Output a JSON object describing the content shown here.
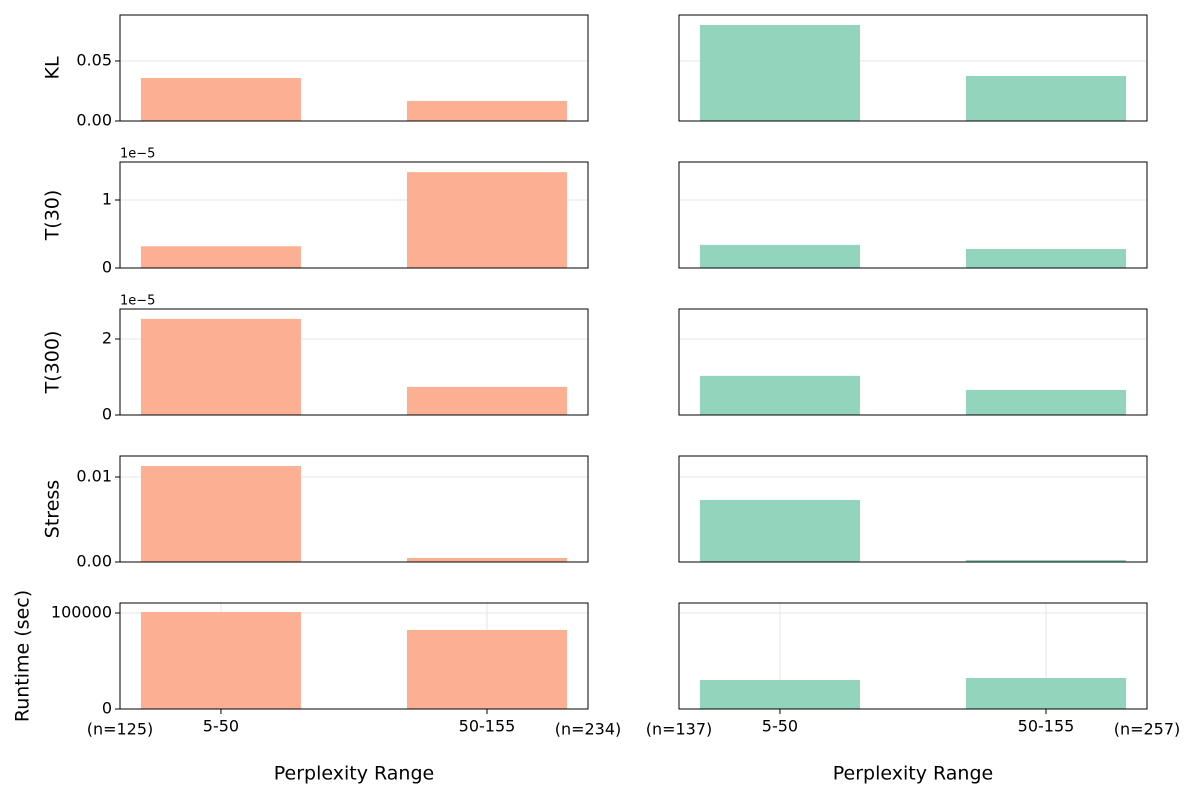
{
  "chart_data": [
    {
      "type": "bar",
      "ylabel": "KL",
      "color": "#fbb094",
      "values": [
        0.0358,
        0.0167
      ],
      "ylim": [
        0,
        0.0883
      ],
      "yticks": [
        {
          "value": 0,
          "label": "0.00"
        },
        {
          "value": 0.05,
          "label": "0.05"
        }
      ],
      "grid": true
    },
    {
      "type": "bar",
      "color": "#93d4bd",
      "values": [
        0.08,
        0.0375
      ],
      "ylim": [
        0,
        0.0883
      ],
      "yticks": [
        0,
        0.05
      ],
      "grid": true
    },
    {
      "type": "bar",
      "ylabel": "T(30)",
      "offset_text": "1e−5",
      "color": "#fbb094",
      "values": [
        3.2e-06,
        1.41e-05
      ],
      "ylim": [
        0,
        1.559e-05
      ],
      "yticks": [
        0,
        {
          "value": 1e-05,
          "label": "1"
        }
      ],
      "grid": true
    },
    {
      "type": "bar",
      "color": "#93d4bd",
      "values": [
        3.4e-06,
        2.8e-06
      ],
      "ylim": [
        0,
        1.559e-05
      ],
      "yticks": [
        0,
        1e-05
      ],
      "grid": true
    },
    {
      "type": "bar",
      "ylabel": "T(300)",
      "offset_text": "1e−5",
      "color": "#fbb094",
      "values": [
        2.53e-05,
        7.4e-06
      ],
      "ylim": [
        0,
        2.79e-05
      ],
      "yticks": [
        0,
        {
          "value": 2e-05,
          "label": "2"
        }
      ],
      "grid": true
    },
    {
      "type": "bar",
      "color": "#93d4bd",
      "values": [
        1.03e-05,
        6.6e-06
      ],
      "ylim": [
        0,
        2.79e-05
      ],
      "yticks": [
        0,
        2e-05
      ],
      "grid": true
    },
    {
      "type": "bar",
      "ylabel": "Stress",
      "color": "#fbb094",
      "values": [
        0.01129,
        0.00047
      ],
      "ylim": [
        0,
        0.01247
      ],
      "yticks": [
        {
          "value": 0,
          "label": "0.00"
        },
        {
          "value": 0.01,
          "label": "0.01"
        }
      ],
      "grid": true
    },
    {
      "type": "bar",
      "color": "#93d4bd",
      "values": [
        0.0073,
        0.00024
      ],
      "ylim": [
        0,
        0.01247
      ],
      "yticks": [
        0,
        0.01
      ],
      "grid": true
    },
    {
      "type": "bar",
      "ylabel": "Runtime (sec)",
      "xlabel": "Perplexity Range",
      "categories": [
        "5-50",
        "50-155"
      ],
      "annotations": [
        "(n=125)",
        "(n=234)"
      ],
      "color": "#fbb094",
      "values": [
        101000,
        82300
      ],
      "ylim": [
        0,
        110417
      ],
      "yticks": [
        0,
        100000
      ],
      "grid": true,
      "xgrid": true
    },
    {
      "type": "bar",
      "xlabel": "Perplexity Range",
      "categories": [
        "5-50",
        "50-155"
      ],
      "annotations": [
        "(n=137)",
        "(n=257)"
      ],
      "color": "#93d4bd",
      "values": [
        30200,
        32300
      ],
      "ylim": [
        0,
        110417
      ],
      "yticks": [
        0,
        100000
      ],
      "grid": true,
      "xgrid": true
    }
  ]
}
